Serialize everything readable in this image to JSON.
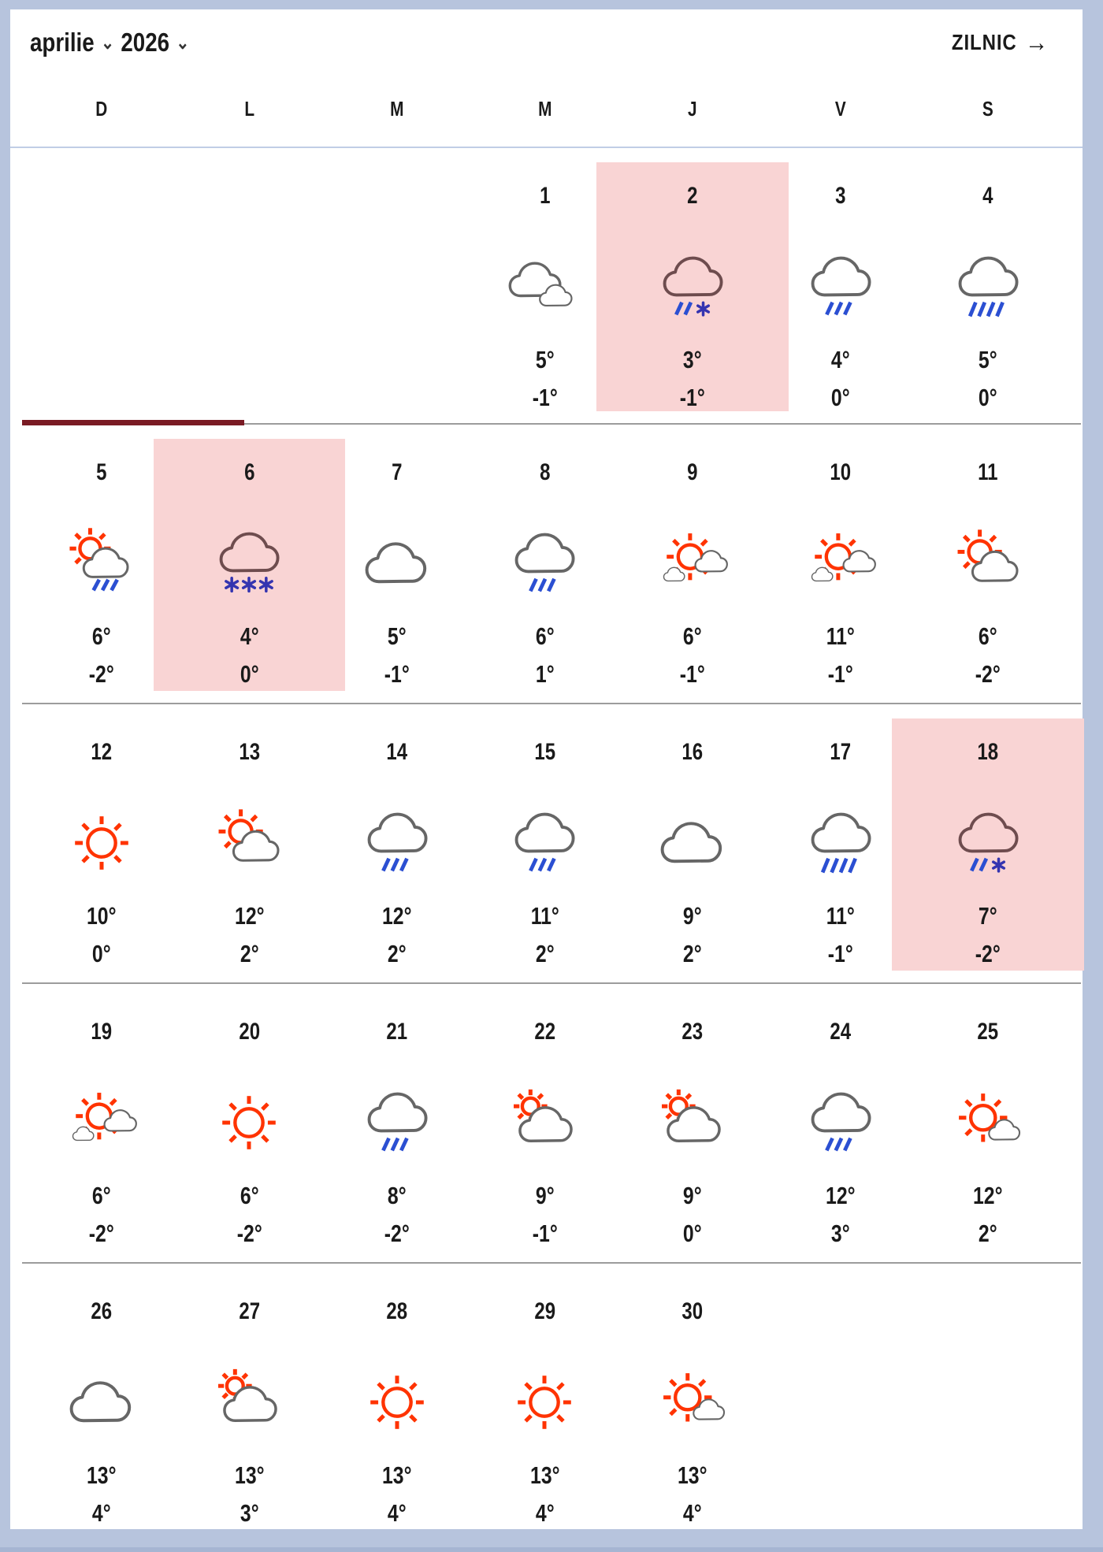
{
  "header": {
    "month_label": "aprilie",
    "year_label": "2026",
    "daily_view_label": "ZILNIC",
    "arrow_right_icon": "→",
    "chevron_down_icon": "⌄"
  },
  "day_names": [
    "D",
    "L",
    "M",
    "M",
    "J",
    "V",
    "S"
  ],
  "weeks": [
    {
      "days": [
        {
          "day": "1",
          "col": 3,
          "icon": "two-clouds",
          "highlight": false,
          "tmax": "5°",
          "tmin": "-1°"
        },
        {
          "day": "2",
          "col": 4,
          "icon": "rain-snow-mix",
          "highlight": true,
          "tmax": "3°",
          "tmin": "-1°"
        },
        {
          "day": "3",
          "col": 5,
          "icon": "rain",
          "highlight": false,
          "tmax": "4°",
          "tmin": "0°"
        },
        {
          "day": "4",
          "col": 6,
          "icon": "rain-heavy",
          "highlight": false,
          "tmax": "5°",
          "tmin": "0°"
        }
      ]
    },
    {
      "days": [
        {
          "day": "5",
          "col": 0,
          "icon": "sun-cloud-rain",
          "highlight": false,
          "tmax": "6°",
          "tmin": "-2°"
        },
        {
          "day": "6",
          "col": 1,
          "icon": "snow",
          "highlight": true,
          "tmax": "4°",
          "tmin": "0°"
        },
        {
          "day": "7",
          "col": 2,
          "icon": "cloudy",
          "highlight": false,
          "tmax": "5°",
          "tmin": "-1°"
        },
        {
          "day": "8",
          "col": 3,
          "icon": "rain",
          "highlight": false,
          "tmax": "6°",
          "tmin": "1°"
        },
        {
          "day": "9",
          "col": 4,
          "icon": "sun-small-clouds",
          "highlight": false,
          "tmax": "6°",
          "tmin": "-1°"
        },
        {
          "day": "10",
          "col": 5,
          "icon": "sun-small-clouds",
          "highlight": false,
          "tmax": "11°",
          "tmin": "-1°"
        },
        {
          "day": "11",
          "col": 6,
          "icon": "partly-sunny",
          "highlight": false,
          "tmax": "6°",
          "tmin": "-2°"
        }
      ]
    },
    {
      "days": [
        {
          "day": "12",
          "col": 0,
          "icon": "sunny",
          "highlight": false,
          "tmax": "10°",
          "tmin": "0°"
        },
        {
          "day": "13",
          "col": 1,
          "icon": "partly-sunny",
          "highlight": false,
          "tmax": "12°",
          "tmin": "2°"
        },
        {
          "day": "14",
          "col": 2,
          "icon": "rain",
          "highlight": false,
          "tmax": "12°",
          "tmin": "2°"
        },
        {
          "day": "15",
          "col": 3,
          "icon": "rain",
          "highlight": false,
          "tmax": "11°",
          "tmin": "2°"
        },
        {
          "day": "16",
          "col": 4,
          "icon": "cloudy",
          "highlight": false,
          "tmax": "9°",
          "tmin": "2°"
        },
        {
          "day": "17",
          "col": 5,
          "icon": "rain-heavy",
          "highlight": false,
          "tmax": "11°",
          "tmin": "-1°"
        },
        {
          "day": "18",
          "col": 6,
          "icon": "rain-snow-mix",
          "highlight": true,
          "tmax": "7°",
          "tmin": "-2°"
        }
      ]
    },
    {
      "days": [
        {
          "day": "19",
          "col": 0,
          "icon": "sun-small-clouds",
          "highlight": false,
          "tmax": "6°",
          "tmin": "-2°"
        },
        {
          "day": "20",
          "col": 1,
          "icon": "sunny",
          "highlight": false,
          "tmax": "6°",
          "tmin": "-2°"
        },
        {
          "day": "21",
          "col": 2,
          "icon": "rain",
          "highlight": false,
          "tmax": "8°",
          "tmin": "-2°"
        },
        {
          "day": "22",
          "col": 3,
          "icon": "mostly-cloudy-sun",
          "highlight": false,
          "tmax": "9°",
          "tmin": "-1°"
        },
        {
          "day": "23",
          "col": 4,
          "icon": "mostly-cloudy-sun",
          "highlight": false,
          "tmax": "9°",
          "tmin": "0°"
        },
        {
          "day": "24",
          "col": 5,
          "icon": "rain",
          "highlight": false,
          "tmax": "12°",
          "tmin": "3°"
        },
        {
          "day": "25",
          "col": 6,
          "icon": "sun-small-cloud",
          "highlight": false,
          "tmax": "12°",
          "tmin": "2°"
        }
      ]
    },
    {
      "days": [
        {
          "day": "26",
          "col": 0,
          "icon": "cloudy",
          "highlight": false,
          "tmax": "13°",
          "tmin": "4°"
        },
        {
          "day": "27",
          "col": 1,
          "icon": "mostly-cloudy-sun",
          "highlight": false,
          "tmax": "13°",
          "tmin": "3°"
        },
        {
          "day": "28",
          "col": 2,
          "icon": "sunny",
          "highlight": false,
          "tmax": "13°",
          "tmin": "4°"
        },
        {
          "day": "29",
          "col": 3,
          "icon": "sunny",
          "highlight": false,
          "tmax": "13°",
          "tmin": "4°"
        },
        {
          "day": "30",
          "col": 4,
          "icon": "sun-small-cloud",
          "highlight": false,
          "tmax": "13°",
          "tmin": "4°"
        }
      ]
    }
  ],
  "colors": {
    "highlight_pink": "#f9d4d4",
    "progress_maroon": "#7a1b24",
    "frame_blue": "#b7c4dd",
    "sun_red": "#ff3300",
    "rain_blue": "#2b4fd2",
    "snow_indigo": "#3434b0"
  }
}
